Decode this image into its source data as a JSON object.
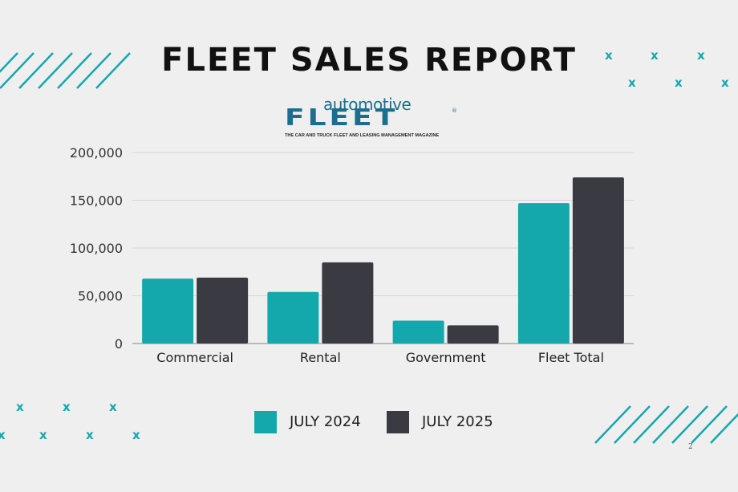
{
  "title": "FLEET SALES REPORT",
  "logo": {
    "top_word": "automotive",
    "main_word": "FLEET",
    "registered": "®",
    "tagline": "THE CAR AND TRUCK FLEET AND LEASING MANAGEMENT MAGAZINE"
  },
  "colors": {
    "teal": "#14a8ac",
    "dark": "#3a3b42",
    "background": "#efefef"
  },
  "decor_icon": "x-icon",
  "decor_glyph": "x",
  "chart_data": {
    "type": "bar",
    "categories": [
      "Commercial",
      "Rental",
      "Government",
      "Fleet Total"
    ],
    "series": [
      {
        "name": "JULY 2024",
        "color": "#14a8ac",
        "values": [
          68000,
          54000,
          24000,
          147000
        ]
      },
      {
        "name": "JULY 2025",
        "color": "#3a3b42",
        "values": [
          69000,
          85000,
          19000,
          174000
        ]
      }
    ],
    "ylim": [
      0,
      200000
    ],
    "yticks": [
      0,
      50000,
      100000,
      150000,
      200000
    ],
    "ytick_labels": [
      "0",
      "50,000",
      "100,000",
      "150,000",
      "200,000"
    ],
    "grid": true,
    "legend": "bottom"
  },
  "page_number": "2"
}
